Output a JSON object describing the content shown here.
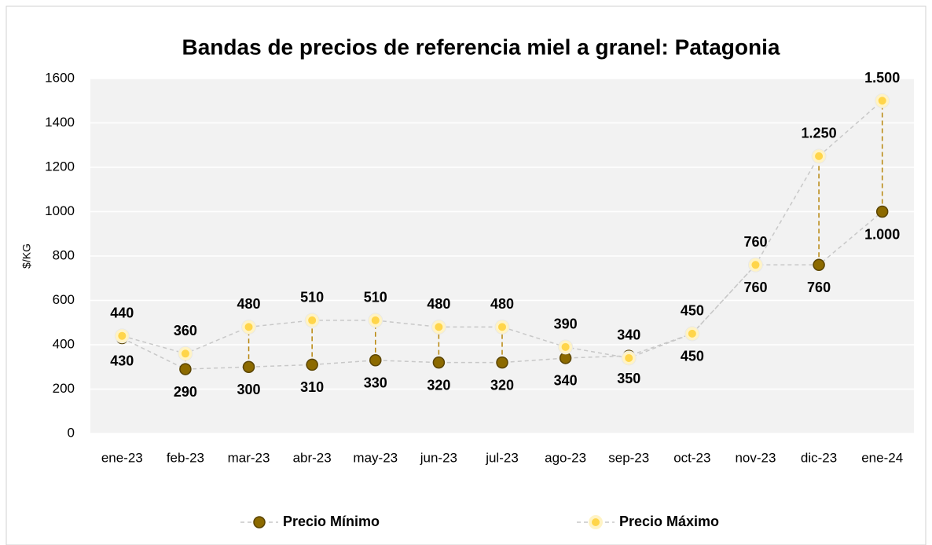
{
  "chart_data": {
    "type": "line",
    "title": "Bandas de precios de referencia miel a granel: Patagonia",
    "y_label": "$/KG",
    "categories": [
      "ene-23",
      "feb-23",
      "mar-23",
      "abr-23",
      "may-23",
      "jun-23",
      "jul-23",
      "ago-23",
      "sep-23",
      "oct-23",
      "nov-23",
      "dic-23",
      "ene-24"
    ],
    "series": [
      {
        "name": "Precio Mínimo",
        "color": "#8c6a00",
        "values": [
          430,
          290,
          300,
          310,
          330,
          320,
          320,
          340,
          350,
          450,
          760,
          760,
          1000
        ],
        "value_labels": [
          "430",
          "290",
          "300",
          "310",
          "330",
          "320",
          "320",
          "340",
          "350",
          "450",
          "760",
          "760",
          "1.000"
        ]
      },
      {
        "name": "Precio Máximo",
        "color": "#ffd54a",
        "values": [
          440,
          360,
          480,
          510,
          510,
          480,
          480,
          390,
          340,
          450,
          760,
          1250,
          1500
        ],
        "value_labels": [
          "440",
          "360",
          "480",
          "510",
          "510",
          "480",
          "480",
          "390",
          "340",
          "450",
          "760",
          "1.250",
          "1.500"
        ]
      }
    ],
    "ylim": [
      0,
      1600
    ],
    "yticks": [
      0,
      200,
      400,
      600,
      800,
      1000,
      1200,
      1400,
      1600
    ],
    "grid": true
  }
}
